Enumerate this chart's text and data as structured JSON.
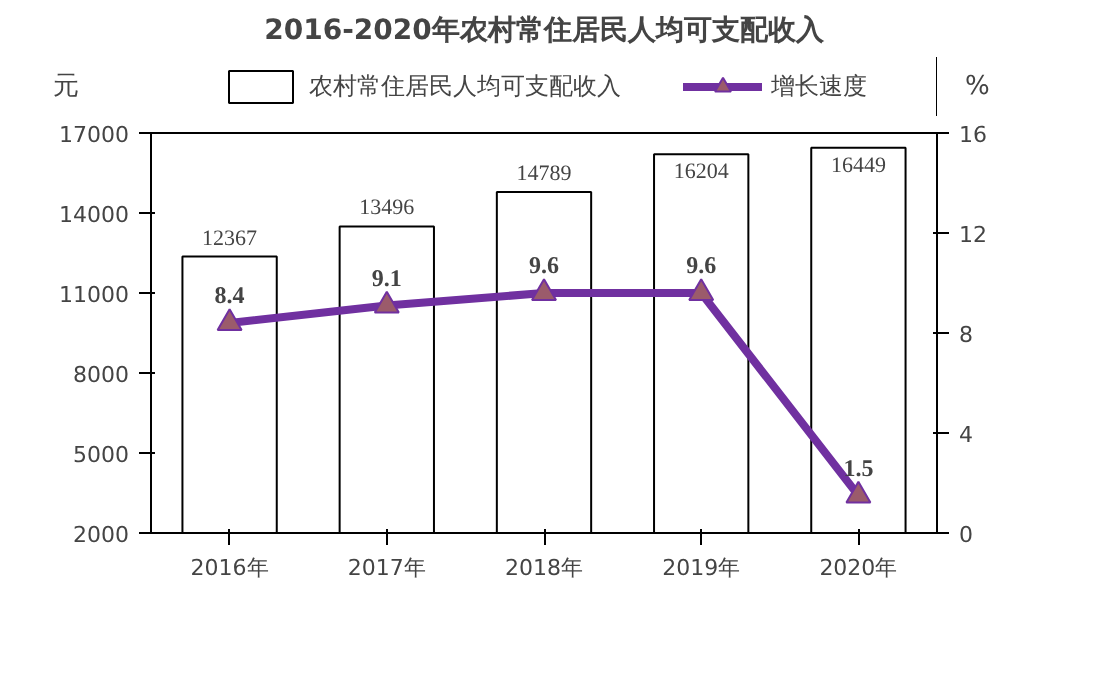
{
  "chart_data": {
    "type": "bar",
    "title": "2016-2020年农村常住居民人均可支配收入",
    "ylabel": "元",
    "y2label": "%",
    "categories": [
      "2016年",
      "2017年",
      "2018年",
      "2019年",
      "2020年"
    ],
    "series": [
      {
        "name": "农村常住居民人均可支配收入",
        "color": "#ffffff",
        "values": [
          12367,
          13496,
          14789,
          16204,
          16449
        ]
      },
      {
        "name": "增长速度",
        "type": "line",
        "axis": "y2",
        "color": "#7030a0",
        "marker": "triangle",
        "values": [
          8.4,
          9.1,
          9.6,
          9.6,
          1.5
        ]
      }
    ],
    "ylim": [
      2000,
      17000
    ],
    "yticks": [
      2000,
      5000,
      8000,
      11000,
      14000,
      17000
    ],
    "y2lim": [
      0,
      16
    ],
    "y2ticks": [
      0,
      4,
      8,
      12,
      16
    ],
    "data_labels": true,
    "legend": "top",
    "grid": false
  }
}
